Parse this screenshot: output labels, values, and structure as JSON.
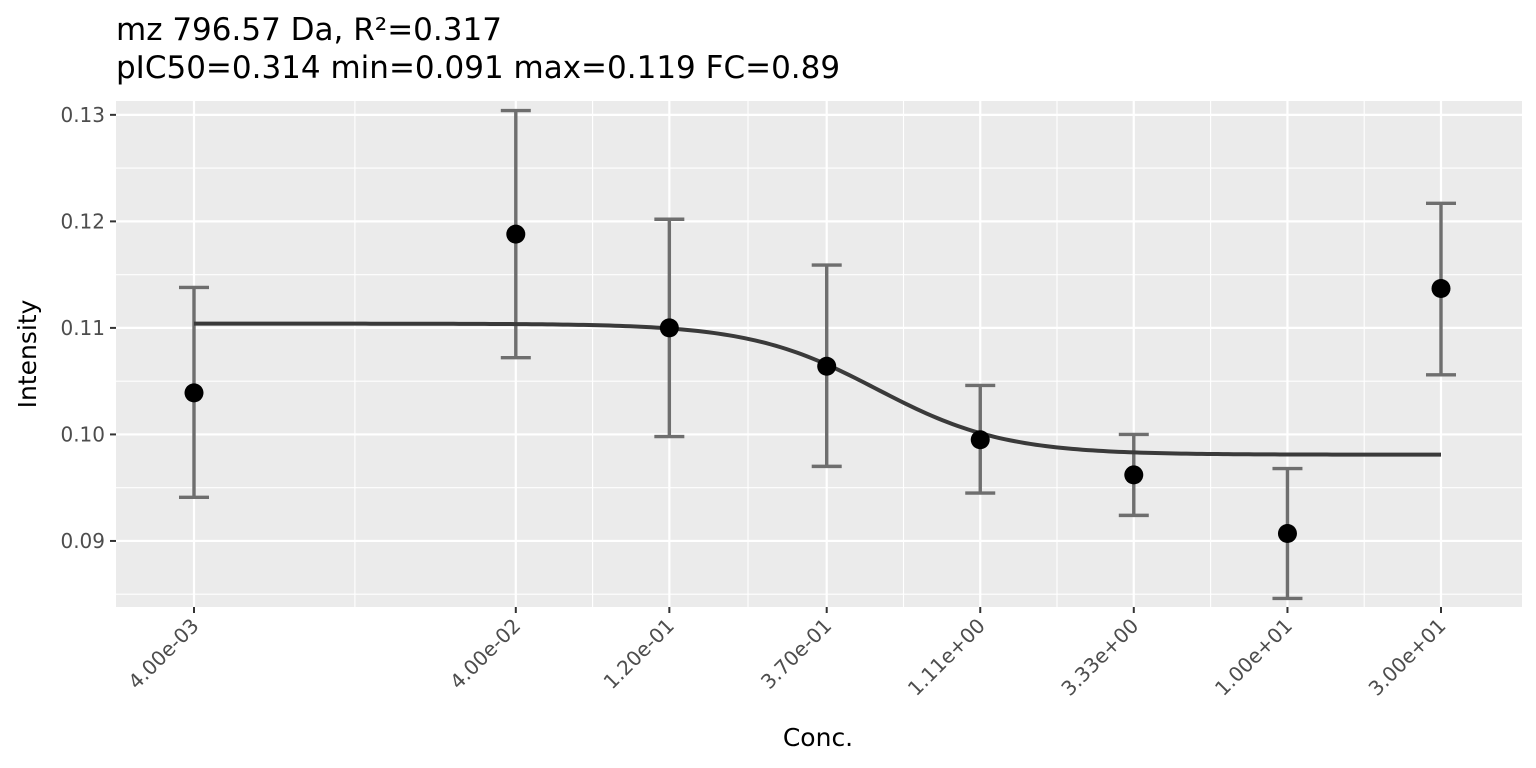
{
  "chart_data": {
    "type": "scatter",
    "title": "mz 796.57 Da, R²=0.317",
    "subtitle": "pIC50=0.314 min=0.091 max=0.119 FC=0.89",
    "xlabel": "Conc.",
    "ylabel": "Intensity",
    "x_scale": "log10",
    "x_ticks": [
      {
        "value": 0.004,
        "label": "4.00e-03"
      },
      {
        "value": 0.04,
        "label": "4.00e-02"
      },
      {
        "value": 0.12,
        "label": "1.20e-01"
      },
      {
        "value": 0.37,
        "label": "3.70e-01"
      },
      {
        "value": 1.11,
        "label": "1.11e+00"
      },
      {
        "value": 3.33,
        "label": "3.33e+00"
      },
      {
        "value": 10,
        "label": "1.00e+01"
      },
      {
        "value": 30,
        "label": "3.00e+01"
      }
    ],
    "y_ticks": [
      {
        "value": 0.09,
        "label": "0.09"
      },
      {
        "value": 0.1,
        "label": "0.10"
      },
      {
        "value": 0.11,
        "label": "0.11"
      },
      {
        "value": 0.12,
        "label": "0.12"
      },
      {
        "value": 0.13,
        "label": "0.13"
      }
    ],
    "ylim": [
      0.0838,
      0.1313
    ],
    "grid": true,
    "points": [
      {
        "x": 0.004,
        "y": 0.1039,
        "ymin": 0.0941,
        "ymax": 0.1138
      },
      {
        "x": 0.04,
        "y": 0.1188,
        "ymin": 0.1072,
        "ymax": 0.1304
      },
      {
        "x": 0.12,
        "y": 0.11,
        "ymin": 0.0998,
        "ymax": 0.1202
      },
      {
        "x": 0.37,
        "y": 0.1064,
        "ymin": 0.097,
        "ymax": 0.1159
      },
      {
        "x": 1.11,
        "y": 0.0995,
        "ymin": 0.0945,
        "ymax": 0.1046
      },
      {
        "x": 3.33,
        "y": 0.0962,
        "ymin": 0.0924,
        "ymax": 0.1
      },
      {
        "x": 10,
        "y": 0.0907,
        "ymin": 0.0846,
        "ymax": 0.0968
      },
      {
        "x": 30,
        "y": 0.1137,
        "ymin": 0.1056,
        "ymax": 0.1217
      }
    ],
    "fit_curve": {
      "model": "4-parameter logistic",
      "top": 0.1104,
      "bottom": 0.0981,
      "ec50": 0.53,
      "hill": 2.2,
      "x_range": [
        0.004,
        30
      ]
    },
    "colors": {
      "panel": "#ebebeb",
      "grid": "#ffffff",
      "points": "#000000",
      "errorbars": "#6e6e6e",
      "curve": "#3a3a3a"
    }
  }
}
